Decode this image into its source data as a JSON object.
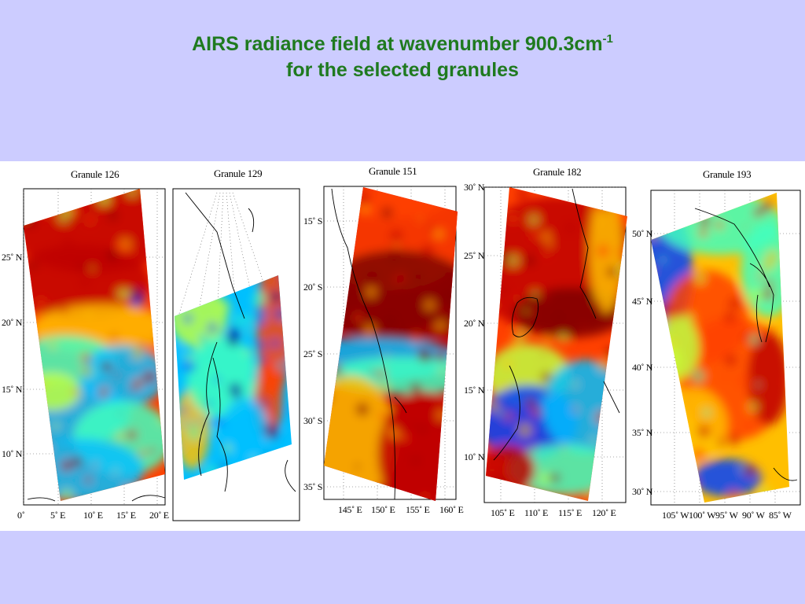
{
  "title": {
    "line1": "AIRS radiance field at wavenumber 900.3cm",
    "line1_superscript": "-1",
    "line2": "for the selected granules"
  },
  "colormap": [
    "#00008f",
    "#0040ff",
    "#00bfff",
    "#40ffbf",
    "#bfff40",
    "#ffbf00",
    "#ff4000",
    "#bf0000",
    "#800000"
  ],
  "background_color": "#ccccff",
  "title_color": "#1f7a1f",
  "granules": [
    {
      "name": "Granule 126",
      "x_ticks": [
        "0˚",
        "5˚ E",
        "10˚ E",
        "15˚ E",
        "20˚ E"
      ],
      "y_ticks": [
        "25˚ N",
        "20˚ N",
        "15˚ N",
        "10˚ N"
      ]
    },
    {
      "name": "Granule 129",
      "x_ticks": [],
      "y_ticks": []
    },
    {
      "name": "Granule 151",
      "x_ticks": [
        "145˚ E",
        "150˚ E",
        "155˚ E",
        "160˚ E"
      ],
      "y_ticks": [
        "15˚ S",
        "20˚ S",
        "25˚ S",
        "30˚ S",
        "35˚ S"
      ]
    },
    {
      "name": "Granule 182",
      "x_ticks": [
        "105˚ E",
        "110˚ E",
        "115˚ E",
        "120˚ E"
      ],
      "y_ticks": [
        "30˚ N",
        "25˚ N",
        "20˚ N",
        "15˚ N",
        "10˚ N"
      ]
    },
    {
      "name": "Granule 193",
      "x_ticks": [
        "105˚ W",
        "100˚ W",
        "95˚ W",
        "90˚ W",
        "85˚ W"
      ],
      "y_ticks": [
        "50˚ N",
        "45˚ N",
        "40˚ N",
        "35˚ N",
        "30˚ N"
      ]
    }
  ]
}
